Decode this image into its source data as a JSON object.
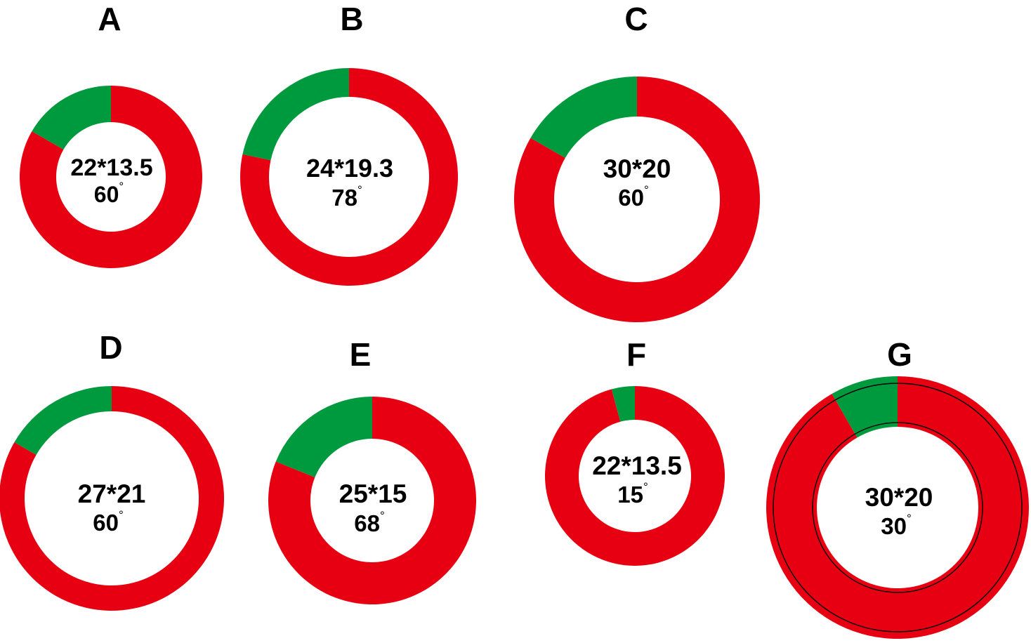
{
  "colors": {
    "remainder": "#e60012",
    "sector": "#009a3e",
    "outline": "#000000",
    "background": "#ffffff"
  },
  "rings": [
    {
      "label": "A",
      "size": "22*13.5",
      "angle": "60",
      "angle_deg": 60
    },
    {
      "label": "B",
      "size": "24*19.3",
      "angle": "78",
      "angle_deg": 78
    },
    {
      "label": "C",
      "size": "30*20",
      "angle": "60",
      "angle_deg": 60
    },
    {
      "label": "D",
      "size": "27*21",
      "angle": "60",
      "angle_deg": 60
    },
    {
      "label": "E",
      "size": "25*15",
      "angle": "68",
      "angle_deg": 68
    },
    {
      "label": "F",
      "size": "22*13.5",
      "angle": "15",
      "angle_deg": 15
    },
    {
      "label": "G",
      "size": "30*20",
      "angle": "30",
      "angle_deg": 30
    }
  ]
}
